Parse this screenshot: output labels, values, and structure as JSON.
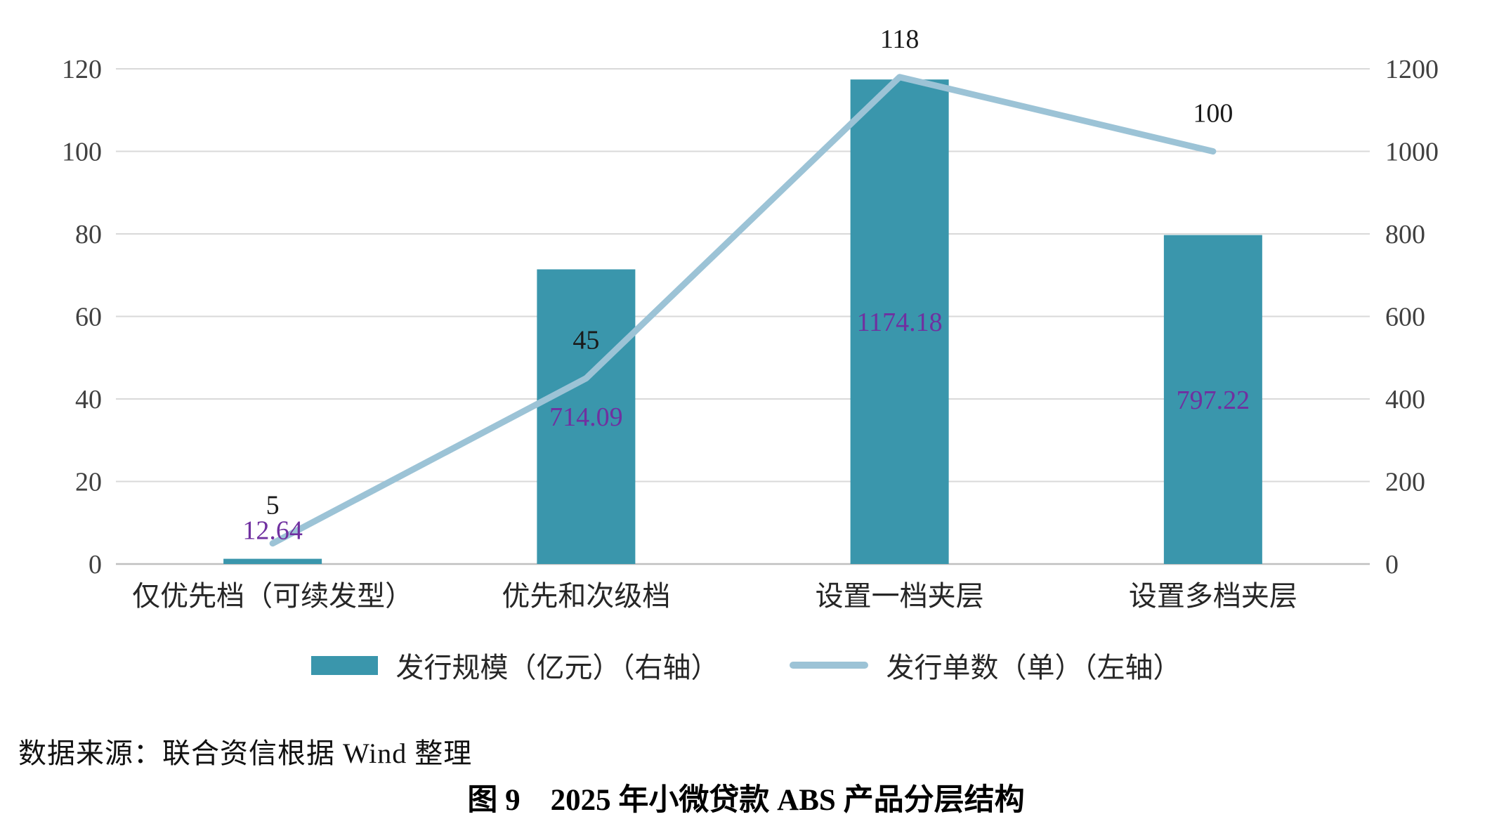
{
  "chart_data": {
    "type": "combo",
    "title": "",
    "categories": [
      "仅优先档（可续发型）",
      "优先和次级档",
      "设置一档夹层",
      "设置多档夹层"
    ],
    "series": [
      {
        "name": "发行规模（亿元）（右轴）",
        "type": "bar",
        "axis": "right",
        "values": [
          12.64,
          714.09,
          1174.18,
          797.22
        ],
        "labels": [
          "12.64",
          "714.09",
          "1174.18",
          "797.22"
        ],
        "color": "#3A96AC",
        "label_color": "#7030A0"
      },
      {
        "name": "发行单数（单）（左轴）",
        "type": "line",
        "axis": "left",
        "values": [
          5,
          45,
          118,
          100
        ],
        "labels": [
          "5",
          "45",
          "118",
          "100"
        ],
        "color": "#9CC3D6",
        "label_color": "#1A1A1A"
      }
    ],
    "left_axis": {
      "min": 0,
      "max": 120,
      "ticks": [
        0,
        20,
        40,
        60,
        80,
        100,
        120
      ]
    },
    "right_axis": {
      "min": 0,
      "max": 1200,
      "ticks": [
        0,
        200,
        400,
        600,
        800,
        1000,
        1200
      ]
    },
    "grid": true,
    "legend_position": "bottom",
    "colors": {
      "gridline": "#D9D9D9",
      "axis_line": "#BFBFBF",
      "tick_text": "#404040"
    }
  },
  "source_note": "数据来源：联合资信根据 Wind 整理",
  "caption": "图 9　2025 年小微贷款 ABS 产品分层结构"
}
